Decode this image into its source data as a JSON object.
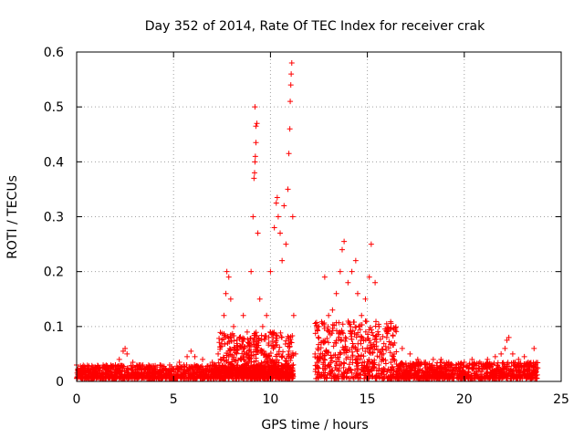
{
  "chart_data": {
    "type": "scatter",
    "title": "Day 352 of 2014, Rate Of TEC Index for receiver crak",
    "xlabel": "GPS time / hours",
    "ylabel": "ROTI / TECUs",
    "xlim": [
      0,
      25
    ],
    "ylim": [
      0,
      0.6
    ],
    "xticks": [
      0,
      5,
      10,
      15,
      20,
      25
    ],
    "yticks": [
      0,
      0.1,
      0.2,
      0.3,
      0.4,
      0.5,
      0.6
    ],
    "xtick_labels": [
      "0",
      "5",
      "10",
      "15",
      "20",
      "25"
    ],
    "ytick_labels": [
      "0",
      "0.1",
      "0.2",
      "0.3",
      "0.4",
      "0.5",
      "0.6"
    ],
    "grid": true,
    "marker": "plus",
    "color": "#ff0000",
    "series": [
      {
        "name": "ROTI",
        "points": [
          [
            0.0,
            0.03
          ],
          [
            0.1,
            0.02
          ],
          [
            0.3,
            0.025
          ],
          [
            0.6,
            0.02
          ],
          [
            0.9,
            0.022
          ],
          [
            1.2,
            0.02
          ],
          [
            1.6,
            0.025
          ],
          [
            2.0,
            0.03
          ],
          [
            2.2,
            0.04
          ],
          [
            2.4,
            0.055
          ],
          [
            2.5,
            0.06
          ],
          [
            2.6,
            0.05
          ],
          [
            2.9,
            0.035
          ],
          [
            3.3,
            0.03
          ],
          [
            3.8,
            0.025
          ],
          [
            4.3,
            0.03
          ],
          [
            4.8,
            0.03
          ],
          [
            5.3,
            0.035
          ],
          [
            5.7,
            0.045
          ],
          [
            5.9,
            0.055
          ],
          [
            6.1,
            0.045
          ],
          [
            6.5,
            0.04
          ],
          [
            7.0,
            0.035
          ],
          [
            7.3,
            0.05
          ],
          [
            7.6,
            0.12
          ],
          [
            7.7,
            0.16
          ],
          [
            7.75,
            0.2
          ],
          [
            7.85,
            0.19
          ],
          [
            7.95,
            0.15
          ],
          [
            8.1,
            0.1
          ],
          [
            8.4,
            0.08
          ],
          [
            8.6,
            0.12
          ],
          [
            8.8,
            0.09
          ],
          [
            9.0,
            0.2
          ],
          [
            9.1,
            0.3
          ],
          [
            9.15,
            0.37
          ],
          [
            9.18,
            0.38
          ],
          [
            9.2,
            0.4
          ],
          [
            9.22,
            0.41
          ],
          [
            9.25,
            0.435
          ],
          [
            9.25,
            0.465
          ],
          [
            9.3,
            0.47
          ],
          [
            9.2,
            0.5
          ],
          [
            9.35,
            0.27
          ],
          [
            9.45,
            0.15
          ],
          [
            9.6,
            0.1
          ],
          [
            9.8,
            0.12
          ],
          [
            10.0,
            0.2
          ],
          [
            10.2,
            0.28
          ],
          [
            10.3,
            0.325
          ],
          [
            10.35,
            0.335
          ],
          [
            10.4,
            0.3
          ],
          [
            10.5,
            0.27
          ],
          [
            10.6,
            0.22
          ],
          [
            10.7,
            0.32
          ],
          [
            10.8,
            0.25
          ],
          [
            10.9,
            0.35
          ],
          [
            10.95,
            0.415
          ],
          [
            11.0,
            0.46
          ],
          [
            11.02,
            0.51
          ],
          [
            11.05,
            0.54
          ],
          [
            11.07,
            0.56
          ],
          [
            11.1,
            0.58
          ],
          [
            11.15,
            0.3
          ],
          [
            11.2,
            0.12
          ],
          [
            11.3,
            0.05
          ],
          [
            12.3,
            0.05
          ],
          [
            12.5,
            0.1
          ],
          [
            12.8,
            0.19
          ],
          [
            13.0,
            0.12
          ],
          [
            13.2,
            0.13
          ],
          [
            13.4,
            0.16
          ],
          [
            13.6,
            0.2
          ],
          [
            13.7,
            0.24
          ],
          [
            13.8,
            0.255
          ],
          [
            14.0,
            0.18
          ],
          [
            14.2,
            0.2
          ],
          [
            14.4,
            0.22
          ],
          [
            14.5,
            0.16
          ],
          [
            14.7,
            0.12
          ],
          [
            14.9,
            0.15
          ],
          [
            15.1,
            0.19
          ],
          [
            15.2,
            0.25
          ],
          [
            15.4,
            0.18
          ],
          [
            15.6,
            0.1
          ],
          [
            16.0,
            0.08
          ],
          [
            16.4,
            0.07
          ],
          [
            16.8,
            0.06
          ],
          [
            17.2,
            0.05
          ],
          [
            17.6,
            0.04
          ],
          [
            18.0,
            0.035
          ],
          [
            18.4,
            0.04
          ],
          [
            18.8,
            0.04
          ],
          [
            19.2,
            0.035
          ],
          [
            19.6,
            0.03
          ],
          [
            20.0,
            0.035
          ],
          [
            20.4,
            0.04
          ],
          [
            20.8,
            0.035
          ],
          [
            21.2,
            0.04
          ],
          [
            21.6,
            0.045
          ],
          [
            21.9,
            0.05
          ],
          [
            22.1,
            0.06
          ],
          [
            22.2,
            0.075
          ],
          [
            22.3,
            0.08
          ],
          [
            22.5,
            0.05
          ],
          [
            22.8,
            0.04
          ],
          [
            23.1,
            0.045
          ],
          [
            23.3,
            0.035
          ],
          [
            23.6,
            0.06
          ],
          [
            23.7,
            0.025
          ]
        ],
        "baseline_ranges": [
          {
            "x": [
              0.0,
              11.2
            ],
            "y": [
              0.005,
              0.03
            ]
          },
          {
            "x": [
              7.3,
              11.2
            ],
            "y": [
              0.01,
              0.09
            ]
          },
          {
            "x": [
              12.3,
              16.5
            ],
            "y": [
              0.005,
              0.11
            ]
          },
          {
            "x": [
              16.5,
              23.8
            ],
            "y": [
              0.005,
              0.035
            ]
          }
        ]
      }
    ]
  }
}
